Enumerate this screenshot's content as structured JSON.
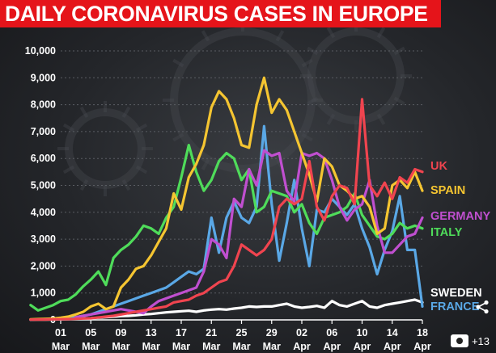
{
  "header": {
    "title": "DAILY CORONAVIRUS CASES IN EUROPE"
  },
  "badge": {
    "count_label": "+13"
  },
  "colors": {
    "title_bg": "#e5141a",
    "UK": "#f0444f",
    "SPAIN": "#f5c531",
    "GERMANY": "#c04fd0",
    "ITALY": "#4fdc5a",
    "SWEDEN": "#ffffff",
    "FRANCE": "#5aa8e6"
  },
  "chart_data": {
    "type": "line",
    "title": "DAILY CORONAVIRUS CASES IN EUROPE",
    "xlabel": "",
    "ylabel": "",
    "ylim": [
      0,
      10000
    ],
    "y_ticks": [
      "0",
      "1,000",
      "2,000",
      "3,000",
      "4,000",
      "5,000",
      "6,000",
      "7,000",
      "8,000",
      "9,000",
      "10,000"
    ],
    "x_ticks": [
      {
        "day": "01",
        "month": "Mar"
      },
      {
        "day": "05",
        "month": "Mar"
      },
      {
        "day": "09",
        "month": "Mar"
      },
      {
        "day": "13",
        "month": "Mar"
      },
      {
        "day": "17",
        "month": "Mar"
      },
      {
        "day": "21",
        "month": "Mar"
      },
      {
        "day": "25",
        "month": "Mar"
      },
      {
        "day": "29",
        "month": "Mar"
      },
      {
        "day": "02",
        "month": "Apr"
      },
      {
        "day": "06",
        "month": "Apr"
      },
      {
        "day": "10",
        "month": "Apr"
      },
      {
        "day": "14",
        "month": "Apr"
      },
      {
        "day": "18",
        "month": "Apr"
      }
    ],
    "grid": true,
    "legend": "inline-right",
    "series": [
      {
        "name": "UK",
        "values": [
          10,
          12,
          15,
          20,
          25,
          30,
          40,
          50,
          60,
          90,
          120,
          150,
          200,
          250,
          300,
          350,
          400,
          450,
          500,
          650,
          700,
          750,
          900,
          1000,
          1200,
          1400,
          1500,
          2000,
          2800,
          2600,
          2400,
          2600,
          3000,
          4200,
          4500,
          4300,
          4500,
          5900,
          4200,
          3700,
          4600,
          5000,
          4900,
          4300,
          8200,
          5000,
          4600,
          5100,
          4500,
          5300,
          5100,
          5600,
          5500
        ]
      },
      {
        "name": "SPAIN",
        "values": [
          20,
          30,
          40,
          50,
          80,
          120,
          200,
          300,
          500,
          600,
          400,
          500,
          1200,
          1500,
          1900,
          2000,
          2400,
          2900,
          3400,
          4700,
          4100,
          5300,
          5800,
          6500,
          7900,
          8500,
          8200,
          7500,
          6500,
          6400,
          8000,
          9000,
          7700,
          8200,
          7800,
          7000,
          6200,
          5400,
          4400,
          6000,
          5700,
          5000,
          4800,
          4500,
          4600,
          4200,
          3200,
          3400,
          5000,
          5200,
          4900,
          5500,
          4800
        ]
      },
      {
        "name": "GERMANY",
        "values": [
          100,
          150,
          200,
          250,
          300,
          350,
          400,
          350,
          300,
          250,
          500,
          700,
          800,
          900,
          1000,
          1100,
          1200,
          1800,
          3000,
          2800,
          2300,
          4500,
          4200,
          5600,
          5000,
          6300,
          6100,
          6200,
          4800,
          4400,
          6200,
          6100,
          6200,
          6000,
          5200,
          4200,
          3700,
          4100,
          4300,
          5200,
          3500,
          2500,
          2500,
          2800,
          3100,
          3200,
          3800
        ]
      },
      {
        "name": "ITALY",
        "values": [
          550,
          350,
          450,
          550,
          700,
          750,
          950,
          1250,
          1500,
          1800,
          1300,
          2300,
          2600,
          2800,
          3100,
          3500,
          3400,
          3200,
          3800,
          4200,
          5300,
          6500,
          5500,
          4800,
          5200,
          5900,
          6200,
          6000,
          5200,
          5600,
          4000,
          4200,
          4800,
          4700,
          4600,
          4000,
          4300,
          3600,
          3200,
          3800,
          3900,
          4000,
          4200,
          4700,
          3900,
          3500,
          3100,
          3000,
          3200,
          3600,
          3400,
          3500,
          3400
        ]
      },
      {
        "name": "SWEDEN",
        "values": [
          5,
          10,
          10,
          15,
          20,
          30,
          40,
          50,
          60,
          80,
          100,
          120,
          140,
          150,
          170,
          200,
          220,
          250,
          280,
          300,
          320,
          340,
          300,
          350,
          380,
          400,
          380,
          420,
          450,
          500,
          480,
          500,
          500,
          550,
          600,
          500,
          450,
          480,
          520,
          450,
          700,
          550,
          500,
          600,
          700,
          500,
          450,
          550,
          600,
          650,
          700,
          750,
          650
        ]
      },
      {
        "name": "FRANCE",
        "values": [
          10,
          20,
          30,
          40,
          60,
          80,
          100,
          150,
          200,
          300,
          400,
          500,
          600,
          700,
          800,
          900,
          1000,
          1100,
          1200,
          1400,
          1600,
          1800,
          1700,
          1900,
          3800,
          2500,
          3800,
          4400,
          3800,
          3600,
          4200,
          7200,
          4300,
          2200,
          3600,
          5200,
          3400,
          2000,
          4100,
          4000,
          4500,
          4200,
          3900,
          4300,
          3400,
          2700,
          1700,
          2600,
          3300,
          4600,
          2600,
          2600,
          500
        ]
      }
    ]
  }
}
